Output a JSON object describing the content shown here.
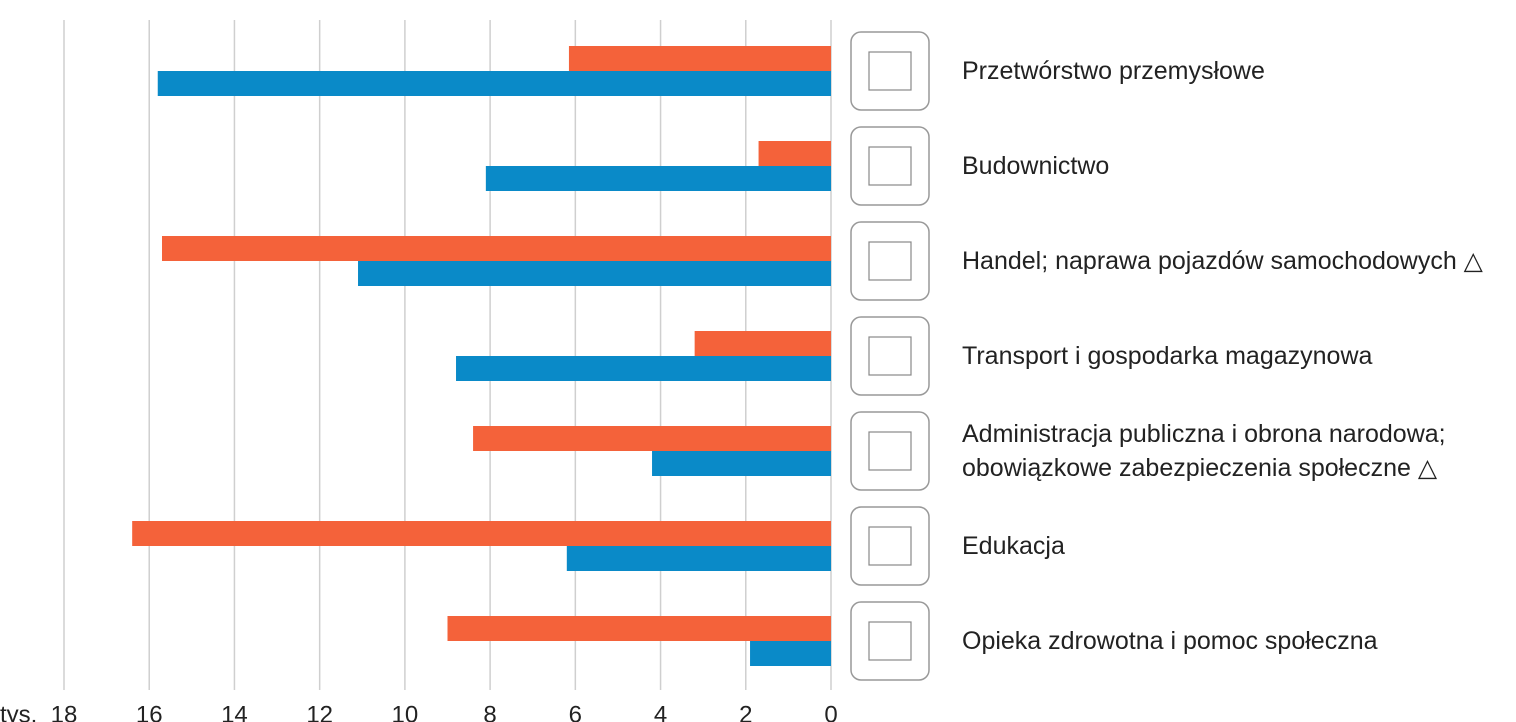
{
  "chart_data": {
    "type": "bar",
    "orientation": "horizontal",
    "x_reversed": true,
    "x_label": "tys.",
    "categories": [
      "Przetwórstwo przemysłowe",
      "Budownictwo",
      "Handel; naprawa pojazdów samochodowych △",
      "Transport i gospodarka magazynowa",
      "Administracja publiczna i obrona narodowa;\nobowiązkowe zabezpieczenia społeczne △",
      "Edukacja",
      "Opieka zdrowotna i pomoc społeczna"
    ],
    "series": [
      {
        "color": "#f4623a",
        "values": [
          6.15,
          1.7,
          15.7,
          3.2,
          8.4,
          16.4,
          9.0
        ]
      },
      {
        "color": "#0a8ac8",
        "values": [
          15.8,
          8.1,
          11.1,
          8.8,
          4.2,
          6.2,
          1.9
        ]
      }
    ],
    "xlim": [
      0,
      18
    ],
    "xticks": [
      0,
      2,
      4,
      6,
      8,
      10,
      12,
      14,
      16,
      18
    ],
    "grid": true
  }
}
